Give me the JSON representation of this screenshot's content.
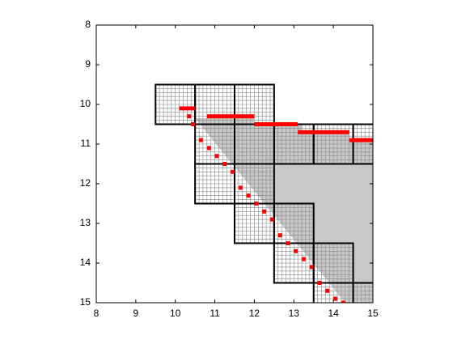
{
  "chart_data": {
    "type": "grid-map",
    "xlim": [
      8,
      15
    ],
    "ylim": [
      8,
      15
    ],
    "y_reversed": true,
    "xticks": [
      8,
      9,
      10,
      11,
      12,
      13,
      14,
      15
    ],
    "yticks": [
      8,
      9,
      10,
      11,
      12,
      13,
      14,
      15
    ],
    "shade_color": "#c8c8c8",
    "red_color": "#ff0000",
    "shade": {
      "x": [
        10.5,
        12,
        12,
        13.2,
        13.2,
        14.4,
        14.4,
        15,
        15,
        14.3
      ],
      "y": [
        10.35,
        10.35,
        10.5,
        10.5,
        10.65,
        10.65,
        10.85,
        10.85,
        15,
        15
      ]
    },
    "boxes": {
      "x": [
        9.5,
        10.5,
        11.5,
        10.5,
        11.5,
        12.5,
        13.5,
        14.5,
        10.5,
        11.5,
        11.5,
        12.5,
        12.5,
        13.5,
        13.5,
        14.5
      ],
      "y": [
        9.5,
        9.5,
        9.5,
        10.5,
        10.5,
        10.5,
        10.5,
        10.5,
        11.5,
        11.5,
        12.5,
        12.5,
        13.5,
        13.5,
        14.5,
        14.5
      ]
    },
    "red": {
      "x1": [
        10.1,
        10.3,
        10.4,
        10.8,
        12,
        13.1,
        14.4,
        10.6,
        10.8,
        11,
        11.2,
        11.4,
        11.6,
        11.8,
        12,
        12.2,
        12.4,
        12.6,
        12.8,
        13,
        13.2,
        13.4,
        13.6,
        13.8,
        14,
        14.2
      ],
      "x2": [
        10.5,
        10.4,
        10.5,
        12,
        13.1,
        14.4,
        15,
        10.7,
        10.9,
        11.1,
        11.3,
        11.5,
        11.7,
        11.9,
        12.1,
        12.3,
        12.5,
        12.7,
        12.9,
        13.1,
        13.3,
        13.5,
        13.7,
        13.9,
        14.1,
        14.3
      ],
      "y": [
        10.1,
        10.3,
        10.5,
        10.3,
        10.5,
        10.7,
        10.9,
        10.9,
        11.1,
        11.3,
        11.5,
        11.7,
        12.1,
        12.3,
        12.5,
        12.7,
        12.9,
        13.3,
        13.5,
        13.7,
        13.9,
        14.1,
        14.5,
        14.7,
        14.9,
        15
      ]
    }
  }
}
